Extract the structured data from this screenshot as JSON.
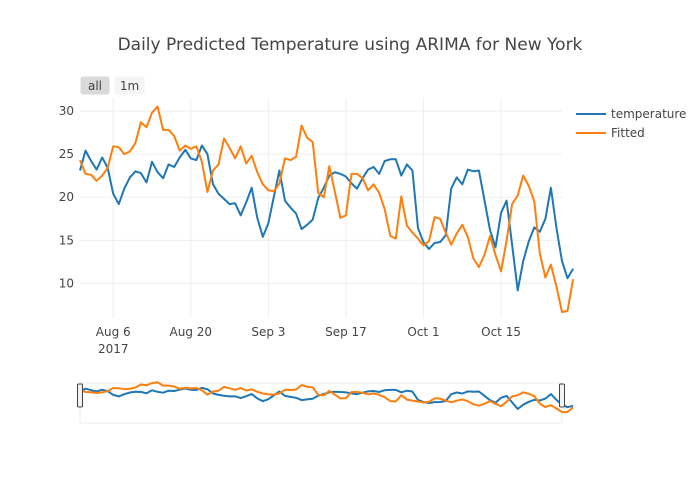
{
  "title": "Daily Predicted Temperature using ARIMA for New York",
  "range_buttons": [
    {
      "label": "all",
      "active": true
    },
    {
      "label": "1m",
      "active": false
    }
  ],
  "colors": {
    "temperature": "#1f77b4",
    "fitted": "#ff7f0e"
  },
  "chart_data": {
    "type": "line",
    "title": "Daily Predicted Temperature using ARIMA for New York",
    "xlabel": "",
    "ylabel": "",
    "x_start": "2017-07-31",
    "x_end": "2017-10-26",
    "xlim": [
      "2017-07-31",
      "2017-10-26"
    ],
    "ylim": [
      6,
      31.5
    ],
    "x_ticks": [
      {
        "date": "2017-08-06",
        "label": "Aug 6",
        "sublabel": "2017"
      },
      {
        "date": "2017-08-20",
        "label": "Aug 20",
        "sublabel": ""
      },
      {
        "date": "2017-09-03",
        "label": "Sep 3",
        "sublabel": ""
      },
      {
        "date": "2017-09-17",
        "label": "Sep 17",
        "sublabel": ""
      },
      {
        "date": "2017-10-01",
        "label": "Oct 1",
        "sublabel": ""
      },
      {
        "date": "2017-10-15",
        "label": "Oct 15",
        "sublabel": ""
      }
    ],
    "y_ticks": [
      10,
      15,
      20,
      25,
      30
    ],
    "grid": true,
    "legend_position": "top-right",
    "rangeslider": true,
    "series": [
      {
        "name": "temperature",
        "color": "#1f77b4",
        "values": [
          23.1,
          25.4,
          24.2,
          23.2,
          24.6,
          23.4,
          20.4,
          19.2,
          21.0,
          22.3,
          23.0,
          22.8,
          21.7,
          24.1,
          22.9,
          22.2,
          23.8,
          23.5,
          24.6,
          25.5,
          24.5,
          24.3,
          26.0,
          25.0,
          21.5,
          20.4,
          19.8,
          19.2,
          19.3,
          17.9,
          19.4,
          21.1,
          17.6,
          15.4,
          17.0,
          20.1,
          23.1,
          19.6,
          18.8,
          18.1,
          16.3,
          16.8,
          17.4,
          19.9,
          21.1,
          22.5,
          22.9,
          22.7,
          22.4,
          21.6,
          21.0,
          22.2,
          23.2,
          23.5,
          22.7,
          24.2,
          24.4,
          24.4,
          22.5,
          23.8,
          23.1,
          16.4,
          14.8,
          14.0,
          14.7,
          14.8,
          15.6,
          21.0,
          22.3,
          21.5,
          23.2,
          23.0,
          23.1,
          19.7,
          16.2,
          14.2,
          18.2,
          19.6,
          14.5,
          9.2,
          12.6,
          14.9,
          16.5,
          16.0,
          17.5,
          21.1,
          16.4,
          12.6,
          10.6,
          11.7
        ]
      },
      {
        "name": "Fitted",
        "color": "#ff7f0e",
        "values": [
          24.3,
          22.7,
          22.6,
          21.9,
          22.5,
          23.4,
          25.9,
          25.8,
          25.0,
          25.3,
          26.3,
          28.7,
          28.1,
          29.8,
          30.5,
          27.8,
          27.8,
          27.1,
          25.4,
          26.0,
          25.6,
          25.9,
          24.1,
          20.6,
          23.1,
          23.8,
          26.8,
          25.7,
          24.5,
          25.9,
          23.9,
          24.8,
          22.9,
          21.5,
          20.8,
          20.7,
          21.6,
          24.5,
          24.3,
          24.7,
          28.3,
          26.9,
          26.4,
          20.5,
          20.0,
          23.6,
          20.6,
          17.6,
          17.9,
          22.7,
          22.7,
          22.2,
          20.8,
          21.5,
          20.5,
          18.6,
          15.5,
          15.2,
          20.1,
          16.7,
          15.9,
          15.2,
          14.4,
          14.9,
          17.7,
          17.5,
          15.9,
          14.5,
          15.8,
          16.8,
          15.4,
          12.9,
          11.9,
          13.3,
          15.5,
          13.3,
          11.4,
          15.0,
          19.2,
          20.2,
          22.5,
          21.3,
          19.5,
          13.5,
          10.7,
          12.2,
          9.6,
          6.7,
          6.8,
          10.5
        ]
      }
    ]
  }
}
